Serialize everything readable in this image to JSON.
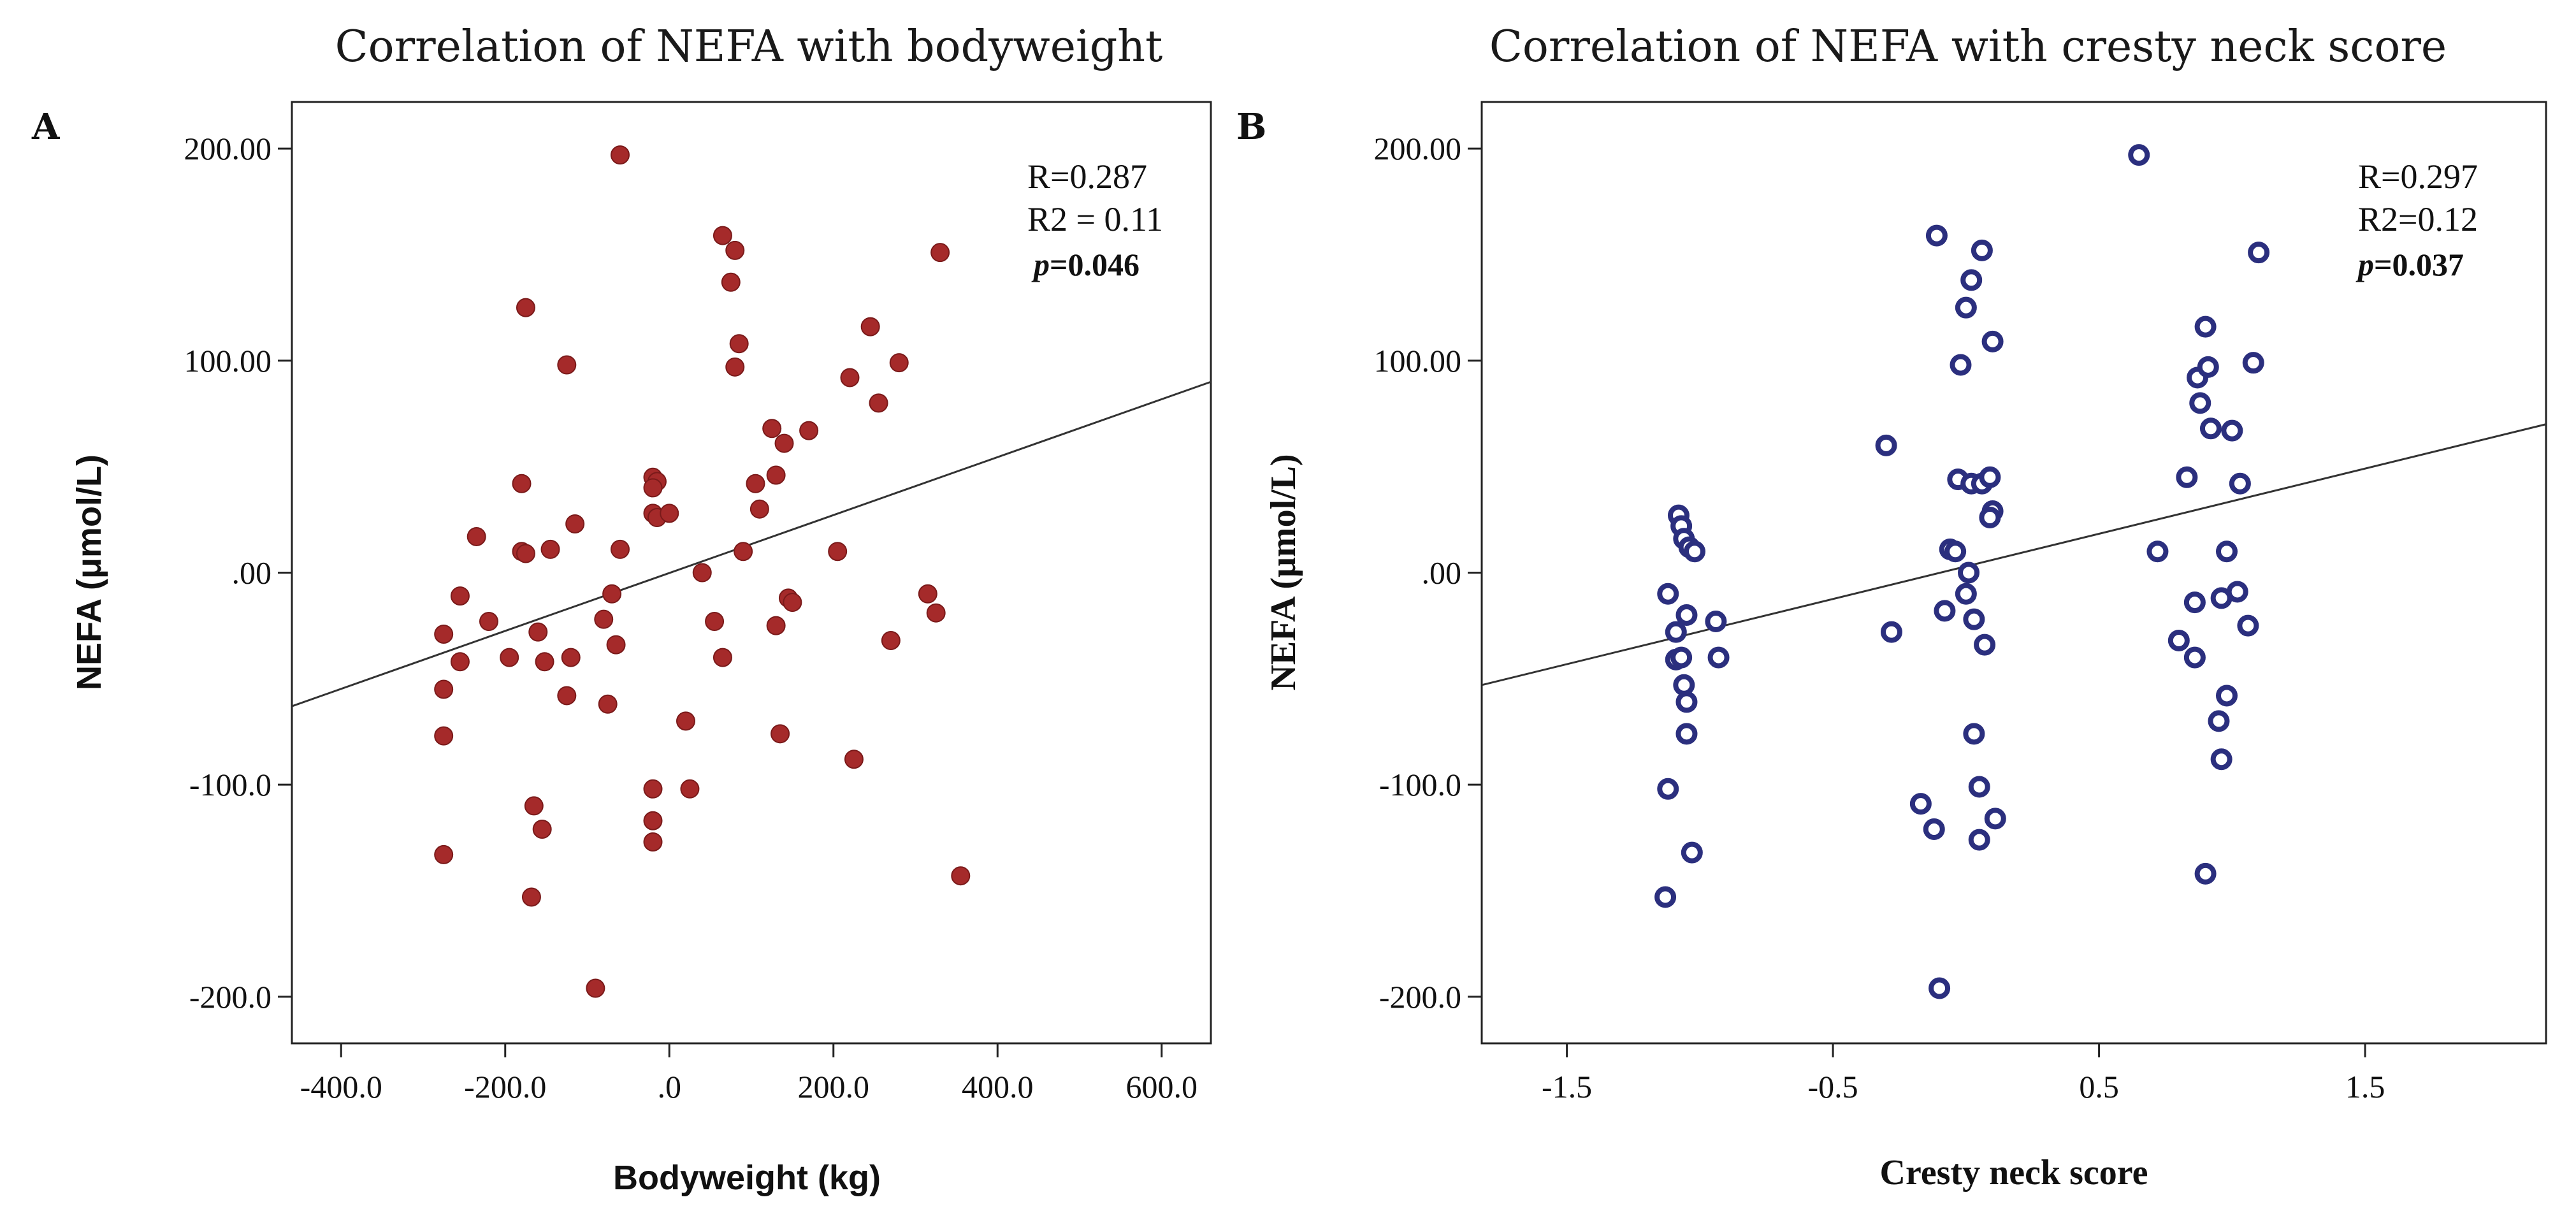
{
  "colors": {
    "left_marker": "#a52a2a",
    "right_marker": "#2b2f7e",
    "axis": "#222222",
    "fit_line": "#333333"
  },
  "chart_data": [
    {
      "type": "scatter",
      "panel": "A",
      "title": "Correlation of NEFA with bodyweight",
      "xlabel": "Bodyweight (kg)",
      "ylabel": "NEFA (μmol/L)",
      "xlim": [
        -460,
        660
      ],
      "ylim": [
        -222,
        222
      ],
      "x_ticks": [
        -400,
        -200,
        0,
        200,
        400,
        600
      ],
      "x_tick_labels": [
        "-400.0",
        "-200.0",
        ".0",
        "200.0",
        "400.0",
        "600.0"
      ],
      "y_ticks": [
        200,
        100,
        0,
        -100,
        -200
      ],
      "y_tick_labels": [
        "200.00",
        "100.00",
        ".00",
        "-100.0",
        "-200.0"
      ],
      "marker": "filled",
      "stats": {
        "r": "R=0.287",
        "r2": "R2 = 0.11",
        "p_label": "p",
        "p_value": "=0.046"
      },
      "fit_line": {
        "x": [
          -460,
          660
        ],
        "y": [
          -63,
          90
        ]
      },
      "points": [
        [
          -60,
          197
        ],
        [
          -175,
          125
        ],
        [
          -125,
          98
        ],
        [
          -180,
          42
        ],
        [
          -235,
          17
        ],
        [
          -180,
          10
        ],
        [
          -175,
          9
        ],
        [
          -115,
          23
        ],
        [
          -145,
          11
        ],
        [
          -275,
          -29
        ],
        [
          -275,
          -55
        ],
        [
          -275,
          -77
        ],
        [
          -275,
          -133
        ],
        [
          -255,
          -11
        ],
        [
          -255,
          -42
        ],
        [
          -220,
          -23
        ],
        [
          -195,
          -40
        ],
        [
          -160,
          -28
        ],
        [
          -152,
          -42
        ],
        [
          -120,
          -40
        ],
        [
          -125,
          -58
        ],
        [
          -165,
          -110
        ],
        [
          -155,
          -121
        ],
        [
          -168,
          -153
        ],
        [
          -90,
          -196
        ],
        [
          -80,
          -22
        ],
        [
          -70,
          -10
        ],
        [
          -65,
          -34
        ],
        [
          -60,
          11
        ],
        [
          -75,
          -62
        ],
        [
          -20,
          45
        ],
        [
          -15,
          43
        ],
        [
          -20,
          40
        ],
        [
          -20,
          28
        ],
        [
          -15,
          26
        ],
        [
          0,
          28
        ],
        [
          -20,
          -102
        ],
        [
          -20,
          -117
        ],
        [
          -20,
          -127
        ],
        [
          20,
          -70
        ],
        [
          25,
          -102
        ],
        [
          40,
          0
        ],
        [
          55,
          -23
        ],
        [
          65,
          -40
        ],
        [
          65,
          159
        ],
        [
          75,
          137
        ],
        [
          80,
          152
        ],
        [
          85,
          108
        ],
        [
          80,
          97
        ],
        [
          90,
          10
        ],
        [
          105,
          42
        ],
        [
          110,
          30
        ],
        [
          125,
          68
        ],
        [
          130,
          46
        ],
        [
          140,
          61
        ],
        [
          130,
          -25
        ],
        [
          135,
          -76
        ],
        [
          145,
          -12
        ],
        [
          150,
          -14
        ],
        [
          170,
          67
        ],
        [
          205,
          10
        ],
        [
          220,
          92
        ],
        [
          225,
          -88
        ],
        [
          245,
          116
        ],
        [
          255,
          80
        ],
        [
          270,
          -32
        ],
        [
          280,
          99
        ],
        [
          315,
          -10
        ],
        [
          325,
          -19
        ],
        [
          330,
          151
        ],
        [
          355,
          -143
        ]
      ]
    },
    {
      "type": "scatter",
      "panel": "B",
      "title": "Correlation of NEFA with cresty neck score",
      "xlabel": "Cresty neck score",
      "ylabel": "NEFA (μmol/L)",
      "xlim": [
        -1.82,
        2.18
      ],
      "ylim": [
        -222,
        222
      ],
      "x_ticks": [
        -1.5,
        -0.5,
        0.5,
        1.5
      ],
      "x_tick_labels": [
        "-1.5",
        "-0.5",
        "0.5",
        "1.5"
      ],
      "y_ticks": [
        200,
        100,
        0,
        -100,
        -200
      ],
      "y_tick_labels": [
        "200.00",
        "100.00",
        ".00",
        "-100.0",
        "-200.0"
      ],
      "marker": "hollow",
      "stats": {
        "r": "R=0.297",
        "r2": "R2=0.12",
        "p_label": "p",
        "p_value": "=0.037"
      },
      "fit_line": {
        "x": [
          -1.82,
          2.18
        ],
        "y": [
          -53,
          70
        ]
      },
      "points": [
        [
          -1.08,
          27
        ],
        [
          -1.07,
          22
        ],
        [
          -1.06,
          16
        ],
        [
          -1.04,
          12
        ],
        [
          -1.02,
          10
        ],
        [
          -1.12,
          -10
        ],
        [
          -1.09,
          -28
        ],
        [
          -1.05,
          -20
        ],
        [
          -1.09,
          -41
        ],
        [
          -1.07,
          -40
        ],
        [
          -1.06,
          -53
        ],
        [
          -1.05,
          -61
        ],
        [
          -1.05,
          -76
        ],
        [
          -0.94,
          -23
        ],
        [
          -0.93,
          -40
        ],
        [
          -1.12,
          -102
        ],
        [
          -1.03,
          -132
        ],
        [
          -1.13,
          -153
        ],
        [
          -0.3,
          60
        ],
        [
          -0.28,
          -28
        ],
        [
          -0.17,
          -109
        ],
        [
          -0.12,
          -121
        ],
        [
          -0.1,
          -196
        ],
        [
          -0.11,
          159
        ],
        [
          -0.08,
          -18
        ],
        [
          -0.06,
          11
        ],
        [
          -0.04,
          10
        ],
        [
          -0.03,
          44
        ],
        [
          -0.02,
          98
        ],
        [
          0.0,
          125
        ],
        [
          0.02,
          138
        ],
        [
          0.06,
          152
        ],
        [
          0.1,
          109
        ],
        [
          0.02,
          42
        ],
        [
          0.06,
          42
        ],
        [
          0.09,
          45
        ],
        [
          0.1,
          29
        ],
        [
          0.09,
          26
        ],
        [
          0.01,
          0
        ],
        [
          0.0,
          -10
        ],
        [
          0.03,
          -22
        ],
        [
          0.07,
          -34
        ],
        [
          0.03,
          -76
        ],
        [
          0.05,
          -101
        ],
        [
          0.05,
          -126
        ],
        [
          0.11,
          -116
        ],
        [
          0.65,
          197
        ],
        [
          0.72,
          10
        ],
        [
          0.8,
          -32
        ],
        [
          0.83,
          45
        ],
        [
          0.86,
          -14
        ],
        [
          0.86,
          -40
        ],
        [
          0.87,
          92
        ],
        [
          0.88,
          80
        ],
        [
          0.9,
          116
        ],
        [
          0.91,
          97
        ],
        [
          0.92,
          68
        ],
        [
          0.9,
          -142
        ],
        [
          0.95,
          -70
        ],
        [
          0.96,
          -12
        ],
        [
          0.96,
          -88
        ],
        [
          0.98,
          10
        ],
        [
          0.98,
          -58
        ],
        [
          1.0,
          67
        ],
        [
          1.02,
          -9
        ],
        [
          1.03,
          42
        ],
        [
          1.06,
          -25
        ],
        [
          1.08,
          99
        ],
        [
          1.1,
          151
        ]
      ]
    }
  ]
}
